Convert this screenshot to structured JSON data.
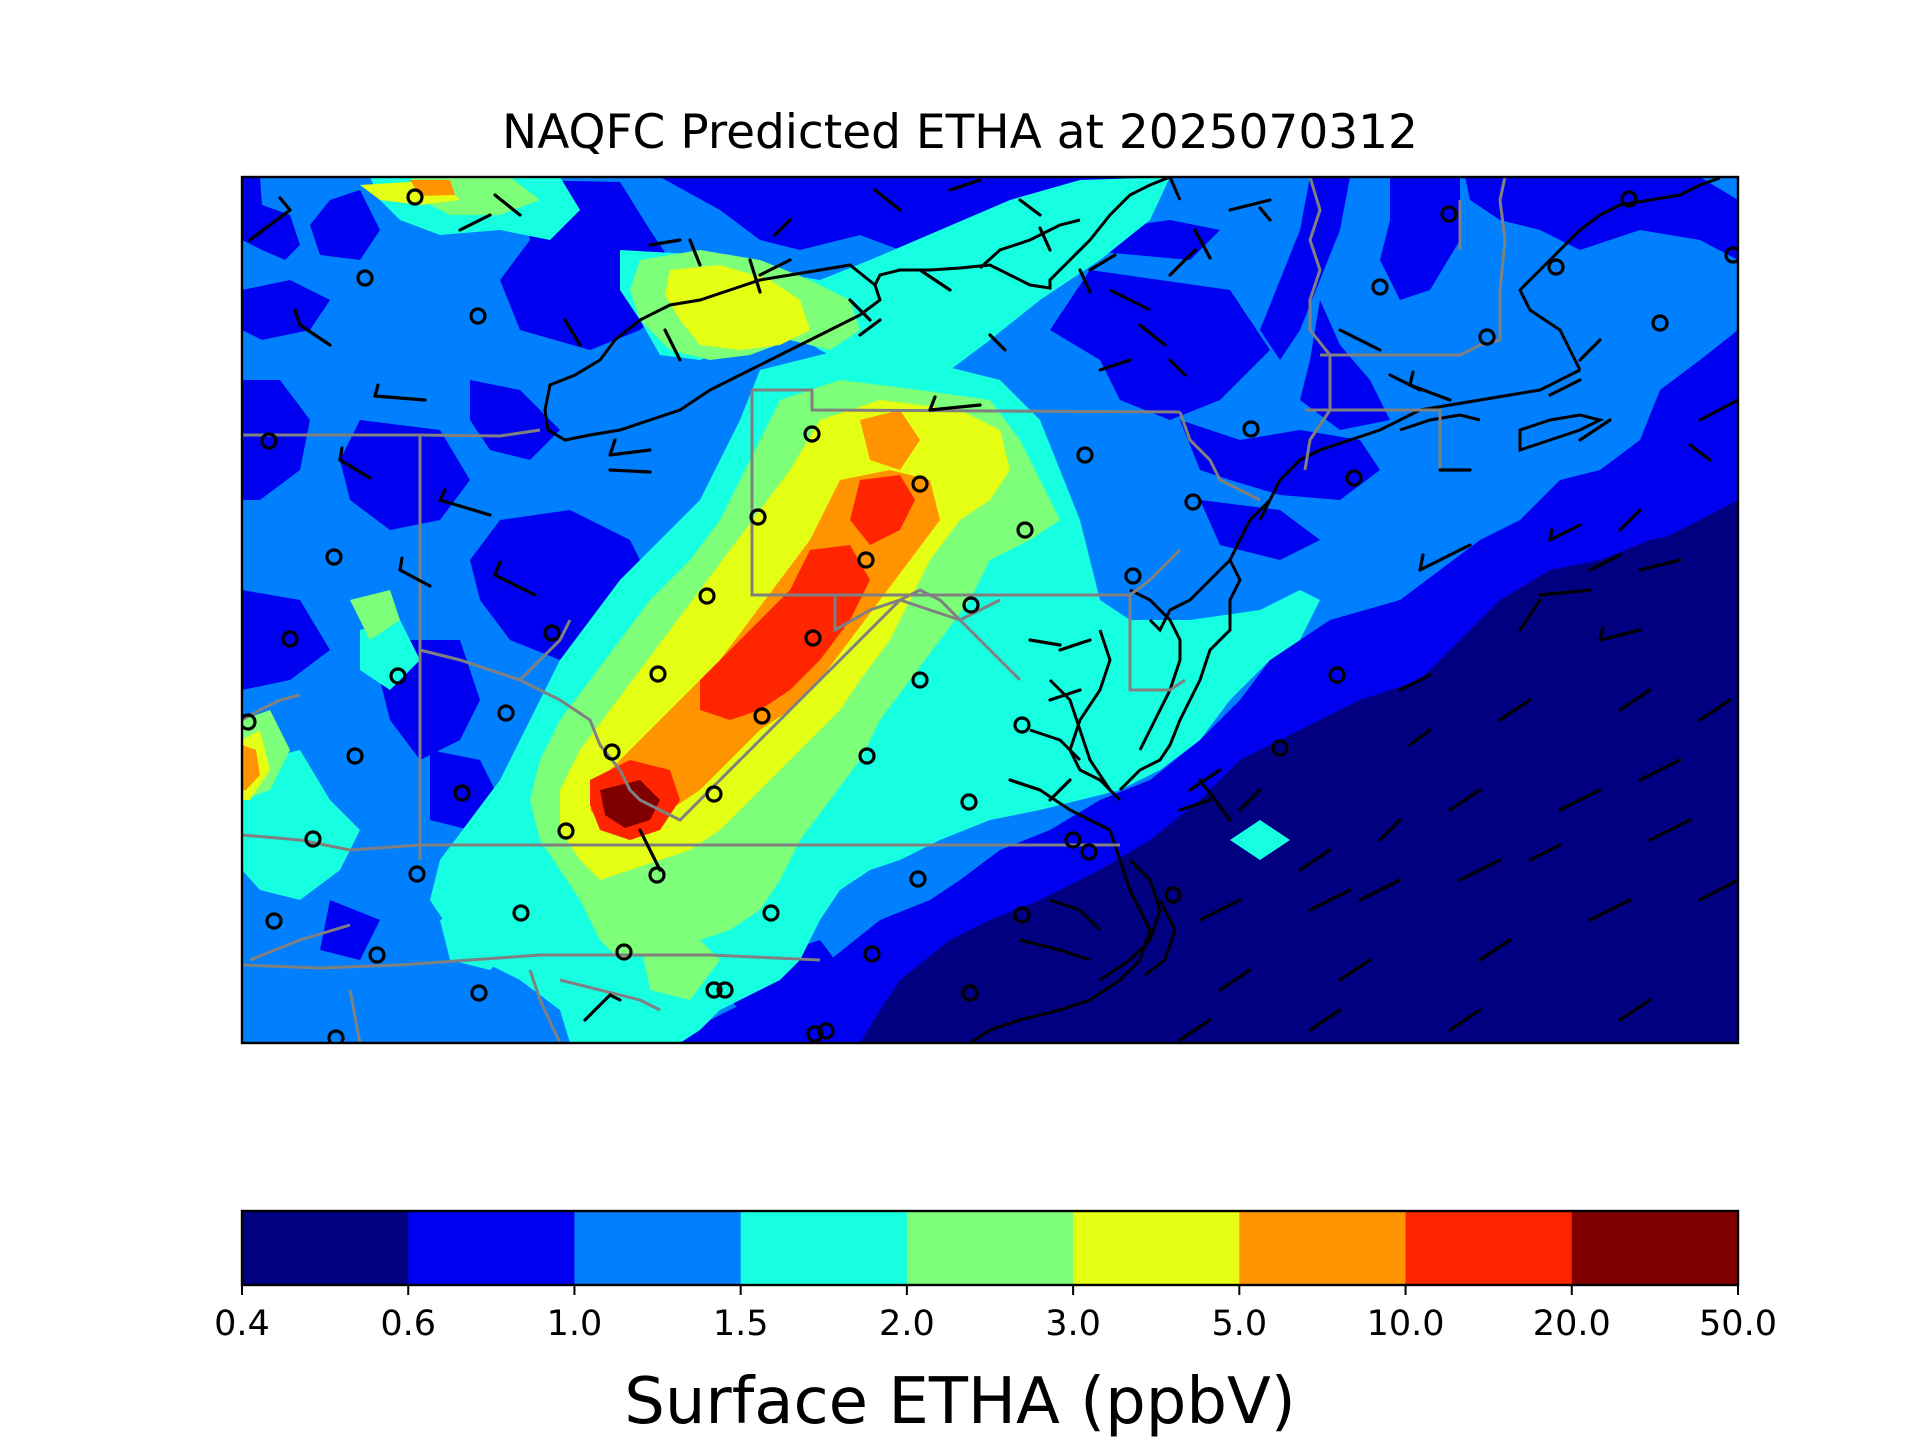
{
  "title": "NAQFC Predicted ETHA at 2025070312",
  "colorbar": {
    "label": "Surface ETHA (ppbV)",
    "ticks": [
      "0.4",
      "0.6",
      "1.0",
      "1.5",
      "2.0",
      "3.0",
      "5.0",
      "10.0",
      "20.0",
      "50.0"
    ],
    "colors": [
      "#000080",
      "#0000f1",
      "#0080ff",
      "#16ffe1",
      "#7dff7a",
      "#e4ff13",
      "#ff9400",
      "#ff2500",
      "#800000"
    ]
  },
  "map": {
    "background_level_color": "#0080ff",
    "state_border_color": "#808080",
    "coastline_color": "#000000",
    "marker": "open circles (site locations)",
    "wind_barbs": "black wind barbs"
  }
}
